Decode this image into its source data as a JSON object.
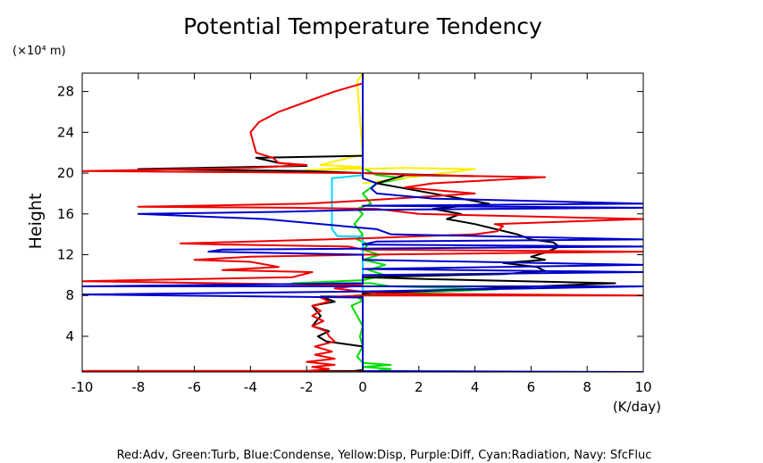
{
  "chart_data": {
    "type": "line",
    "title": "Potential Temperature Tendency",
    "xlabel": "(K/day)",
    "ylabel": "Height",
    "y_multiplier": "(×10⁴ m)",
    "xlim": [
      -10,
      10
    ],
    "ylim": [
      0.5,
      29.8
    ],
    "xticks": [
      -10,
      -8,
      -6,
      -4,
      -2,
      0,
      2,
      4,
      6,
      8,
      10
    ],
    "yticks": [
      4,
      8,
      12,
      16,
      20,
      24,
      28
    ],
    "legend_text": "Red:Adv, Green:Turb, Blue:Condense, Yellow:Disp, Purple:Diff, Cyan:Radiation, Navy: SfcFluc",
    "grid": false,
    "series": [
      {
        "key": "turb",
        "color": "#00dd00",
        "points": [
          [
            0.5,
            0.6
          ],
          [
            1.0,
            0.8
          ],
          [
            0.0,
            1.0
          ],
          [
            1.0,
            1.2
          ],
          [
            0.0,
            1.4
          ],
          [
            -0.2,
            2.0
          ],
          [
            0.0,
            3.0
          ],
          [
            -0.1,
            4.0
          ],
          [
            0.0,
            5.0
          ],
          [
            -0.2,
            6.0
          ],
          [
            -0.4,
            7.0
          ],
          [
            0.0,
            7.5
          ],
          [
            -0.3,
            8.0
          ],
          [
            2.0,
            8.3
          ],
          [
            4.8,
            8.6
          ],
          [
            1.0,
            8.9
          ],
          [
            0.3,
            9.2
          ],
          [
            -2.5,
            9.2
          ],
          [
            0.0,
            9.5
          ],
          [
            0.8,
            10.0
          ],
          [
            0.2,
            10.5
          ],
          [
            0.8,
            11.0
          ],
          [
            0.0,
            11.5
          ],
          [
            0.6,
            12.0
          ],
          [
            0.0,
            12.5
          ],
          [
            0.2,
            13.0
          ],
          [
            -0.2,
            13.5
          ],
          [
            0.0,
            14.0
          ],
          [
            -0.3,
            15.0
          ],
          [
            0.0,
            16.0
          ],
          [
            -0.2,
            16.5
          ],
          [
            0.3,
            17.0
          ],
          [
            0.0,
            18.0
          ],
          [
            0.5,
            19.0
          ],
          [
            1.5,
            19.5
          ],
          [
            0.5,
            19.8
          ],
          [
            0.0,
            20.5
          ],
          [
            0.0,
            29.8
          ]
        ]
      },
      {
        "key": "cyan",
        "color": "#00d8ff",
        "points": [
          [
            0.0,
            0.5
          ],
          [
            0.0,
            13.8
          ],
          [
            -0.9,
            13.8
          ],
          [
            -1.1,
            14.5
          ],
          [
            -1.1,
            17.0
          ],
          [
            -1.1,
            19.5
          ],
          [
            0.0,
            19.8
          ],
          [
            0.0,
            29.8
          ]
        ]
      },
      {
        "key": "disp",
        "color": "#ffee00",
        "points": [
          [
            0.0,
            19.0
          ],
          [
            4.0,
            20.4
          ],
          [
            1.5,
            20.5
          ],
          [
            -2.0,
            20.3
          ],
          [
            0.0,
            20.6
          ],
          [
            -1.5,
            20.8
          ],
          [
            -0.5,
            21.5
          ],
          [
            0.0,
            21.8
          ],
          [
            -0.2,
            29.0
          ],
          [
            0.0,
            29.8
          ]
        ]
      },
      {
        "key": "sfc",
        "color": "#000000",
        "points": [
          [
            -9.8,
            0.6
          ],
          [
            -0.3,
            0.6
          ],
          [
            0.0,
            0.7
          ],
          [
            0.0,
            7.9
          ],
          [
            -1.5,
            7.9
          ],
          [
            -1.0,
            7.4
          ],
          [
            -1.8,
            7.0
          ],
          [
            -1.5,
            6.0
          ],
          [
            -1.8,
            5.0
          ],
          [
            -1.2,
            4.5
          ],
          [
            -1.6,
            4.0
          ],
          [
            -1.3,
            3.5
          ],
          [
            0.0,
            3.0
          ],
          [
            0.0,
            8.2
          ],
          [
            9.0,
            9.2
          ],
          [
            2.5,
            9.6
          ],
          [
            0.0,
            9.8
          ],
          [
            5.0,
            10.1
          ],
          [
            6.5,
            10.4
          ],
          [
            6.2,
            10.8
          ],
          [
            5.0,
            11.2
          ],
          [
            6.5,
            11.5
          ],
          [
            6.0,
            11.8
          ],
          [
            6.5,
            12.2
          ],
          [
            7.0,
            12.8
          ],
          [
            6.8,
            13.2
          ],
          [
            6.0,
            13.5
          ],
          [
            5.5,
            14.0
          ],
          [
            4.0,
            15.0
          ],
          [
            3.0,
            15.5
          ],
          [
            3.5,
            16.0
          ],
          [
            2.5,
            16.5
          ],
          [
            4.5,
            17.0
          ],
          [
            3.5,
            17.5
          ],
          [
            1.5,
            18.5
          ],
          [
            0.5,
            19.0
          ],
          [
            1.5,
            19.8
          ],
          [
            4.0,
            19.7
          ],
          [
            0.0,
            20.0
          ],
          [
            -2.0,
            20.2
          ],
          [
            -8.0,
            20.4
          ],
          [
            -2.0,
            20.7
          ],
          [
            -3.0,
            21.0
          ],
          [
            -3.8,
            21.5
          ],
          [
            0.0,
            21.7
          ],
          [
            0.0,
            29.8
          ]
        ]
      },
      {
        "key": "adv",
        "color": "#ee0000",
        "points": [
          [
            0.0,
            0.5
          ],
          [
            -10.0,
            0.6
          ],
          [
            -2.0,
            0.6
          ],
          [
            -1.2,
            0.8
          ],
          [
            -1.8,
            1.0
          ],
          [
            -1.0,
            1.2
          ],
          [
            -2.0,
            1.5
          ],
          [
            -1.0,
            1.8
          ],
          [
            -1.7,
            2.2
          ],
          [
            -1.1,
            2.5
          ],
          [
            -1.7,
            3.0
          ],
          [
            -1.0,
            3.5
          ],
          [
            -1.2,
            4.0
          ],
          [
            -1.3,
            4.5
          ],
          [
            -1.8,
            5.0
          ],
          [
            -1.4,
            5.5
          ],
          [
            -1.8,
            6.0
          ],
          [
            -1.5,
            6.5
          ],
          [
            -1.8,
            7.0
          ],
          [
            -1.2,
            7.4
          ],
          [
            -1.5,
            7.8
          ],
          [
            0.0,
            8.0
          ],
          [
            10.0,
            8.0
          ],
          [
            0.5,
            8.2
          ],
          [
            -1.0,
            8.7
          ],
          [
            0.0,
            9.0
          ],
          [
            -10.0,
            9.4
          ],
          [
            -2.5,
            9.8
          ],
          [
            -1.8,
            10.3
          ],
          [
            -5.0,
            10.5
          ],
          [
            -3.0,
            10.8
          ],
          [
            -4.0,
            11.3
          ],
          [
            -6.0,
            11.5
          ],
          [
            -4.0,
            11.8
          ],
          [
            0.0,
            12.0
          ],
          [
            10.0,
            12.3
          ],
          [
            0.0,
            12.5
          ],
          [
            -0.5,
            12.8
          ],
          [
            -5.0,
            13.0
          ],
          [
            -6.5,
            13.1
          ],
          [
            -4.0,
            13.3
          ],
          [
            0.0,
            13.6
          ],
          [
            4.0,
            14.0
          ],
          [
            4.8,
            14.3
          ],
          [
            5.0,
            14.8
          ],
          [
            4.7,
            15.0
          ],
          [
            10.0,
            15.5
          ],
          [
            2.0,
            16.0
          ],
          [
            0.5,
            16.5
          ],
          [
            -2.5,
            16.6
          ],
          [
            -8.0,
            16.7
          ],
          [
            -2.0,
            17.0
          ],
          [
            0.0,
            17.3
          ],
          [
            4.0,
            18.0
          ],
          [
            1.5,
            18.6
          ],
          [
            2.5,
            19.0
          ],
          [
            6.5,
            19.6
          ],
          [
            2.0,
            19.8
          ],
          [
            0.0,
            20.0
          ],
          [
            -10.0,
            20.2
          ],
          [
            -4.0,
            20.5
          ],
          [
            -2.0,
            20.8
          ],
          [
            -3.0,
            21.0
          ],
          [
            -3.2,
            21.5
          ],
          [
            -3.8,
            22.0
          ],
          [
            -3.9,
            23.0
          ],
          [
            -4.0,
            24.0
          ],
          [
            -3.7,
            25.0
          ],
          [
            -3.0,
            26.0
          ],
          [
            -2.0,
            27.0
          ],
          [
            -1.0,
            28.0
          ],
          [
            0.0,
            28.8
          ],
          [
            0.0,
            29.8
          ]
        ]
      },
      {
        "key": "condense",
        "color": "#0000cc",
        "points": [
          [
            0.0,
            0.5
          ],
          [
            10.0,
            0.5
          ],
          [
            0.0,
            0.6
          ],
          [
            0.0,
            7.8
          ],
          [
            -10.0,
            8.1
          ],
          [
            0.0,
            8.4
          ],
          [
            10.0,
            8.9
          ],
          [
            -10.0,
            8.9
          ],
          [
            0.0,
            9.2
          ],
          [
            0.0,
            10.0
          ],
          [
            10.0,
            10.3
          ],
          [
            0.0,
            10.6
          ],
          [
            10.0,
            11.0
          ],
          [
            0.0,
            11.5
          ],
          [
            0.0,
            12.0
          ],
          [
            -5.5,
            12.3
          ],
          [
            -5.0,
            12.5
          ],
          [
            10.0,
            12.8
          ],
          [
            0.0,
            13.0
          ],
          [
            0.5,
            13.3
          ],
          [
            10.0,
            13.5
          ],
          [
            1.0,
            14.0
          ],
          [
            0.5,
            14.5
          ],
          [
            -3.5,
            15.5
          ],
          [
            -8.0,
            16.0
          ],
          [
            -3.0,
            16.2
          ],
          [
            0.0,
            16.4
          ],
          [
            10.0,
            16.6
          ],
          [
            0.0,
            16.8
          ],
          [
            10.0,
            17.0
          ],
          [
            2.5,
            17.5
          ],
          [
            0.5,
            18.0
          ],
          [
            0.3,
            18.5
          ],
          [
            0.5,
            19.0
          ],
          [
            0.0,
            19.5
          ],
          [
            0.0,
            29.8
          ]
        ]
      }
    ]
  }
}
